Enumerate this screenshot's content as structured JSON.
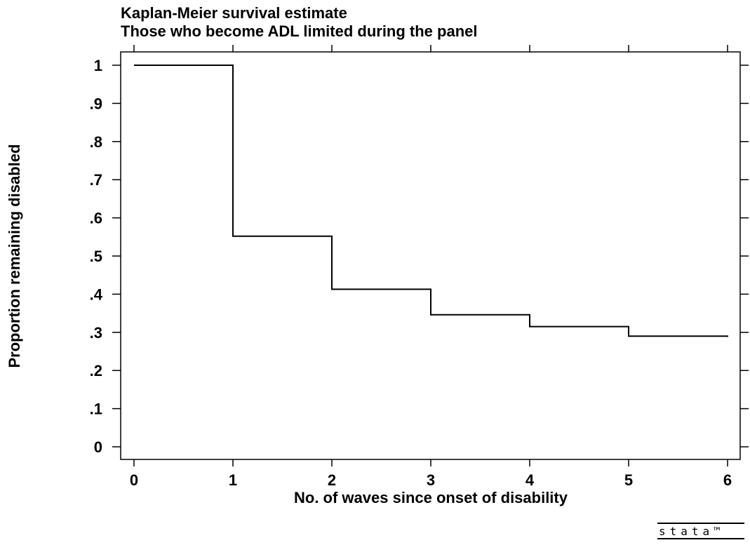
{
  "chart_data": {
    "type": "line",
    "step": true,
    "title": "Kaplan-Meier survival estimate",
    "subtitle": "Those who become ADL limited during the panel",
    "xlabel": "No. of waves since onset of disability",
    "ylabel": "Proportion remaining disabled",
    "xlim": [
      0,
      6
    ],
    "ylim": [
      0,
      1
    ],
    "x_ticks": [
      0,
      1,
      2,
      3,
      4,
      5,
      6
    ],
    "x_tick_labels": [
      "0",
      "1",
      "2",
      "3",
      "4",
      "5",
      "6"
    ],
    "y_ticks": [
      0,
      0.1,
      0.2,
      0.3,
      0.4,
      0.5,
      0.6,
      0.7,
      0.8,
      0.9,
      1
    ],
    "y_tick_labels": [
      "0",
      ".1",
      ".2",
      ".3",
      ".4",
      ".5",
      ".6",
      ".7",
      ".8",
      ".9",
      "1"
    ],
    "grid": false,
    "series": [
      {
        "x": [
          0,
          1,
          2,
          3,
          4,
          5,
          6
        ],
        "y": [
          1.0,
          0.552,
          0.413,
          0.346,
          0.315,
          0.29,
          0.288
        ]
      }
    ],
    "colors": {
      "line": "#000000",
      "axis": "#000000",
      "background": "#ffffff"
    }
  },
  "watermark": "stata™"
}
